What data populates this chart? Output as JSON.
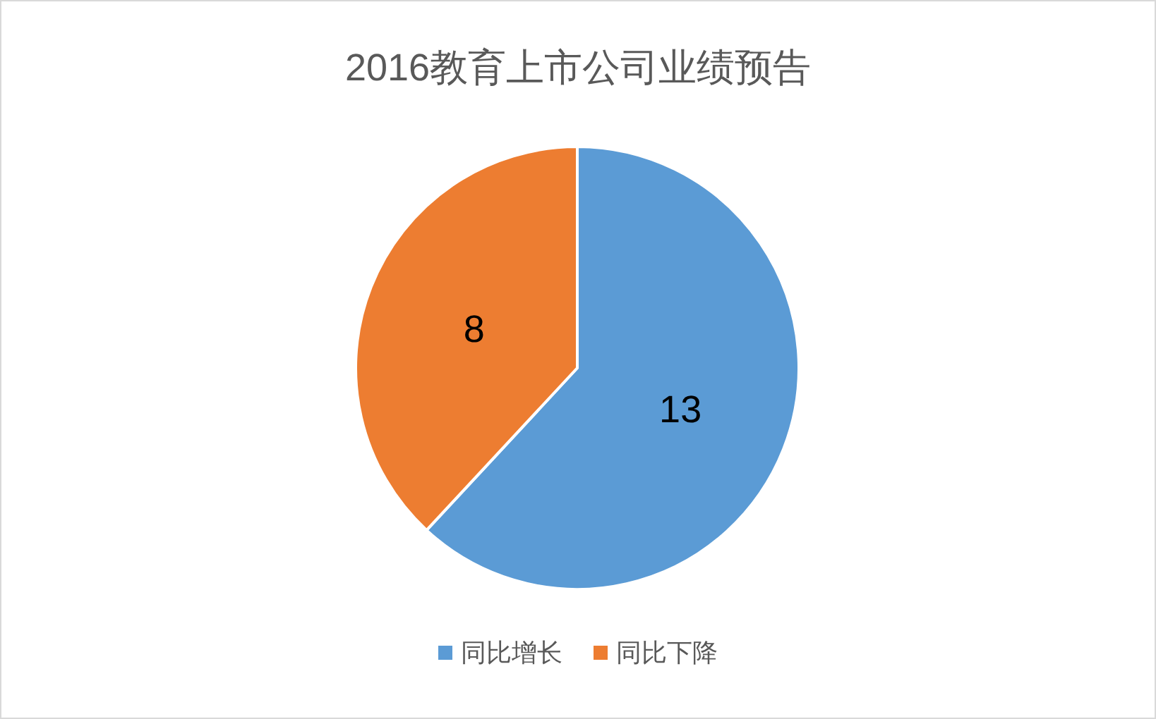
{
  "chart_data": {
    "type": "pie",
    "title": "2016教育上市公司业绩预告",
    "categories": [
      "同比增长",
      "同比下降"
    ],
    "values": [
      13,
      8
    ],
    "colors": [
      "#5b9bd5",
      "#ed7d31"
    ],
    "data_labels": true,
    "legend": "bottom"
  }
}
